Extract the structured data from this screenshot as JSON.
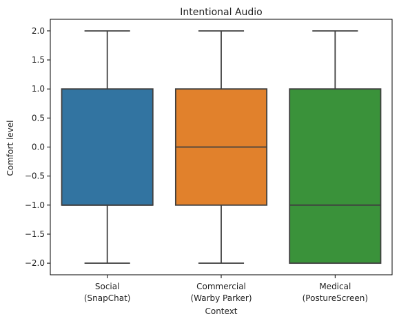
{
  "chart_data": {
    "type": "box",
    "title": "Intentional Audio",
    "xlabel": "Context",
    "ylabel": "Comfort level",
    "ylim": [
      -2.2,
      2.2
    ],
    "yticks": [
      2.0,
      1.5,
      1.0,
      0.5,
      0.0,
      -0.5,
      -1.0,
      -1.5,
      -2.0
    ],
    "ytick_labels": [
      "2.0",
      "1.5",
      "1.0",
      "0.5",
      "0.0",
      "−0.5",
      "−1.0",
      "−1.5",
      "−2.0"
    ],
    "grid": false,
    "categories": [
      {
        "line1": "Social",
        "line2": "(SnapChat)"
      },
      {
        "line1": "Commercial",
        "line2": "(Warby Parker)"
      },
      {
        "line1": "Medical",
        "line2": "(PostureScreen)"
      }
    ],
    "boxes": [
      {
        "whisker_low": -2,
        "q1": -1,
        "median": -1,
        "q3": 1,
        "whisker_high": 2,
        "color": "#3274a1"
      },
      {
        "whisker_low": -2,
        "q1": -1,
        "median": 0,
        "q3": 1,
        "whisker_high": 2,
        "color": "#e1812c"
      },
      {
        "whisker_low": -2,
        "q1": -2,
        "median": -1,
        "q3": 1,
        "whisker_high": 2,
        "color": "#3a923a"
      }
    ],
    "line_color": "#3f3f3f"
  }
}
